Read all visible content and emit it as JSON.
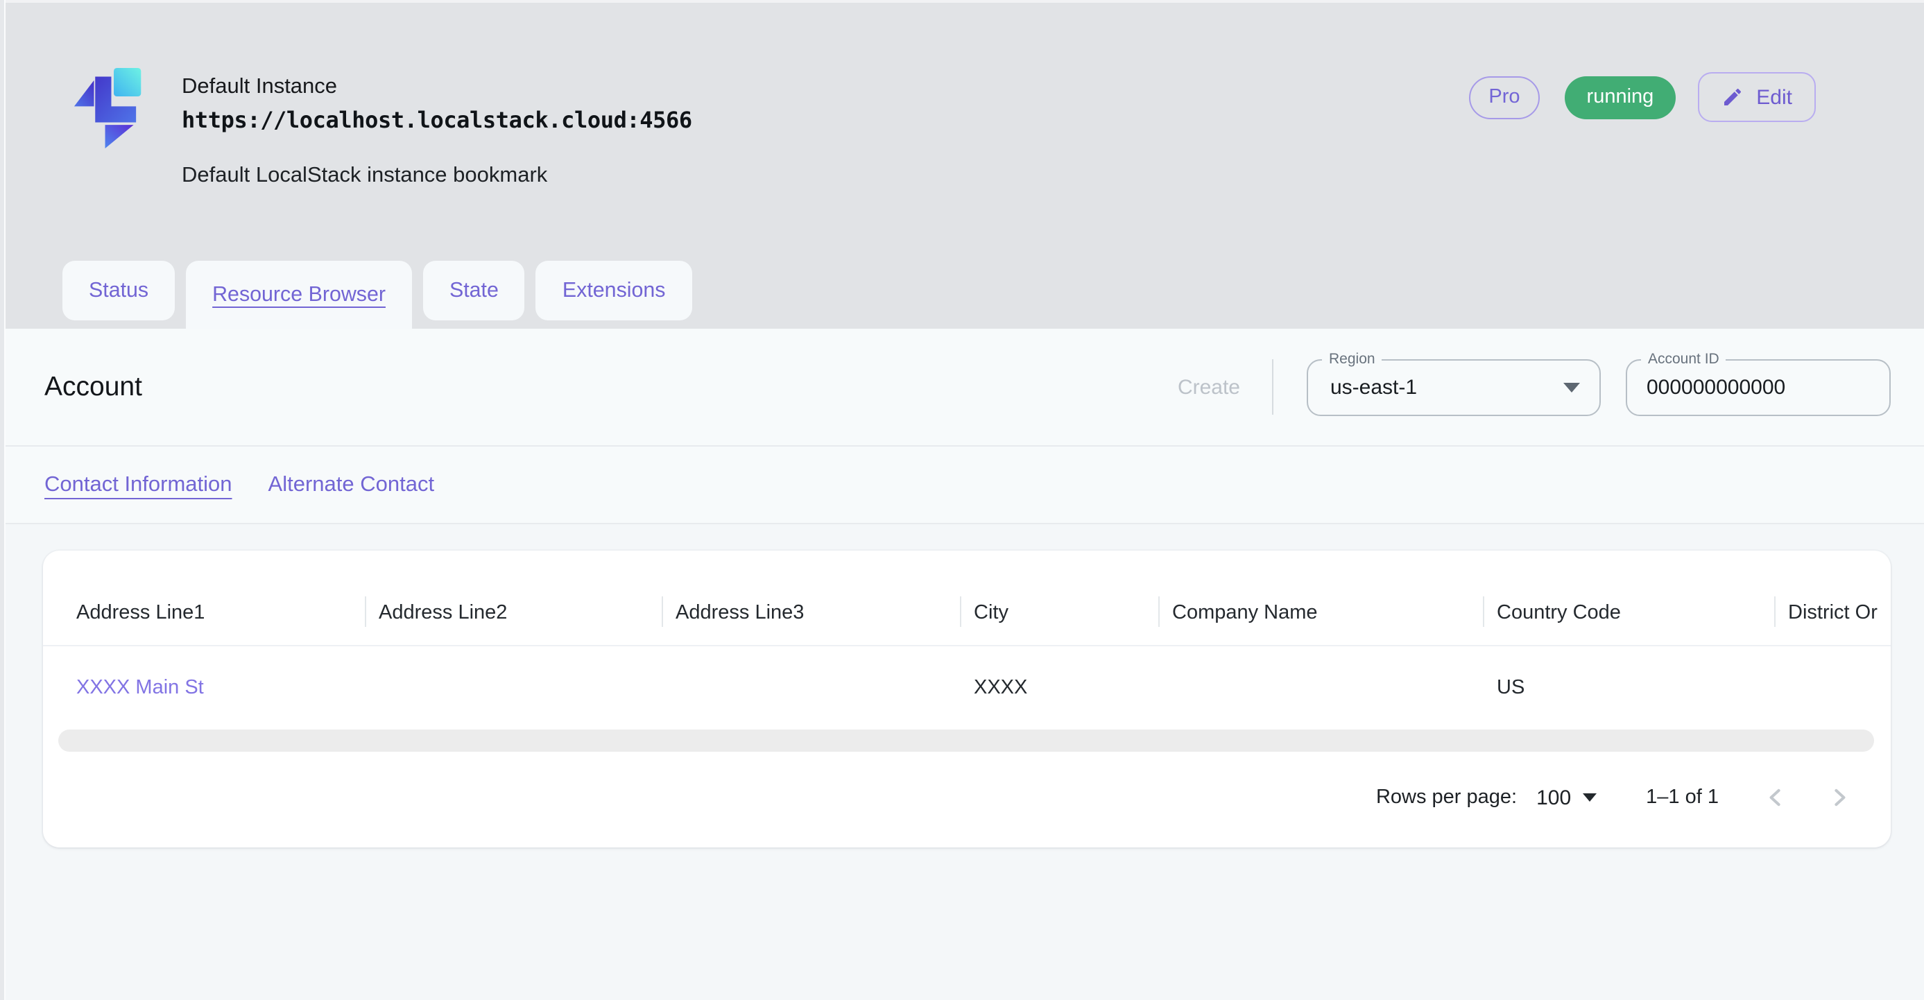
{
  "colors": {
    "accent_purple": "#7265d4",
    "chip_green": "#41ad74",
    "link_purple": "#8274e4",
    "header_bg": "#e1e3e6",
    "band_bg": "#f7fafb",
    "main_bg": "#f4f7f9",
    "card_bg": "#ffffff"
  },
  "header": {
    "logo_icon": "localstack-logo",
    "title": "Default Instance",
    "url": "https://localhost.localstack.cloud:4566",
    "description": "Default LocalStack instance bookmark",
    "pro_badge": "Pro",
    "status_badge": "running",
    "edit_button": "Edit",
    "edit_icon": "pencil-icon"
  },
  "tabs": [
    {
      "label": "Status",
      "active": false
    },
    {
      "label": "Resource Browser",
      "active": true
    },
    {
      "label": "State",
      "active": false
    },
    {
      "label": "Extensions",
      "active": false
    }
  ],
  "toolbar": {
    "title": "Account",
    "create_button": "Create",
    "region": {
      "label": "Region",
      "value": "us-east-1",
      "icon": "caret-down-icon"
    },
    "account_id": {
      "label": "Account ID",
      "value": "000000000000"
    }
  },
  "subtabs": [
    {
      "label": "Contact Information",
      "active": true
    },
    {
      "label": "Alternate Contact",
      "active": false
    }
  ],
  "table": {
    "columns": [
      "Address Line1",
      "Address Line2",
      "Address Line3",
      "City",
      "Company Name",
      "Country Code",
      "District Or"
    ],
    "rows": [
      {
        "cells": [
          "XXXX Main St",
          "",
          "",
          "XXXX",
          "",
          "US",
          ""
        ],
        "link_cell": 0
      }
    ]
  },
  "pagination": {
    "rows_per_page_label": "Rows per page:",
    "rows_per_page_value": "100",
    "rows_per_page_icon": "caret-down-icon",
    "range_label": "1–1 of 1",
    "prev_icon": "chevron-left-icon",
    "next_icon": "chevron-right-icon"
  }
}
